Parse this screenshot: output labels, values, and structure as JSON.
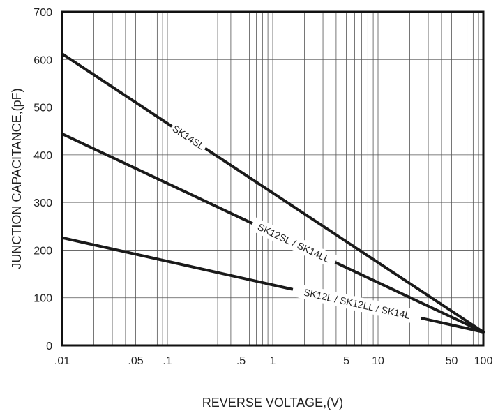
{
  "chart_data": {
    "type": "line",
    "xlabel": "REVERSE VOLTAGE,(V)",
    "ylabel": "JUNCTION CAPACITANCE,(pF)",
    "xscale": "log",
    "xlim": [
      0.01,
      100
    ],
    "ylim": [
      0,
      700
    ],
    "grid": true,
    "xticks": [
      {
        "value": 0.01,
        "label": ".01"
      },
      {
        "value": 0.05,
        "label": ".05"
      },
      {
        "value": 0.1,
        "label": ".1"
      },
      {
        "value": 0.5,
        "label": ".5"
      },
      {
        "value": 1,
        "label": "1"
      },
      {
        "value": 5,
        "label": "5"
      },
      {
        "value": 10,
        "label": "10"
      },
      {
        "value": 50,
        "label": "50"
      },
      {
        "value": 100,
        "label": "100"
      }
    ],
    "yticks": [
      0,
      100,
      200,
      300,
      400,
      500,
      600,
      700
    ],
    "series": [
      {
        "name": "SK14SL",
        "x": [
          0.01,
          100
        ],
        "y": [
          612,
          28
        ]
      },
      {
        "name": "SK12SL / SK14LL",
        "x": [
          0.01,
          100
        ],
        "y": [
          444,
          28
        ]
      },
      {
        "name": "SK12L / SK12LL / SK14L",
        "x": [
          0.01,
          100
        ],
        "y": [
          226,
          28
        ]
      }
    ]
  }
}
